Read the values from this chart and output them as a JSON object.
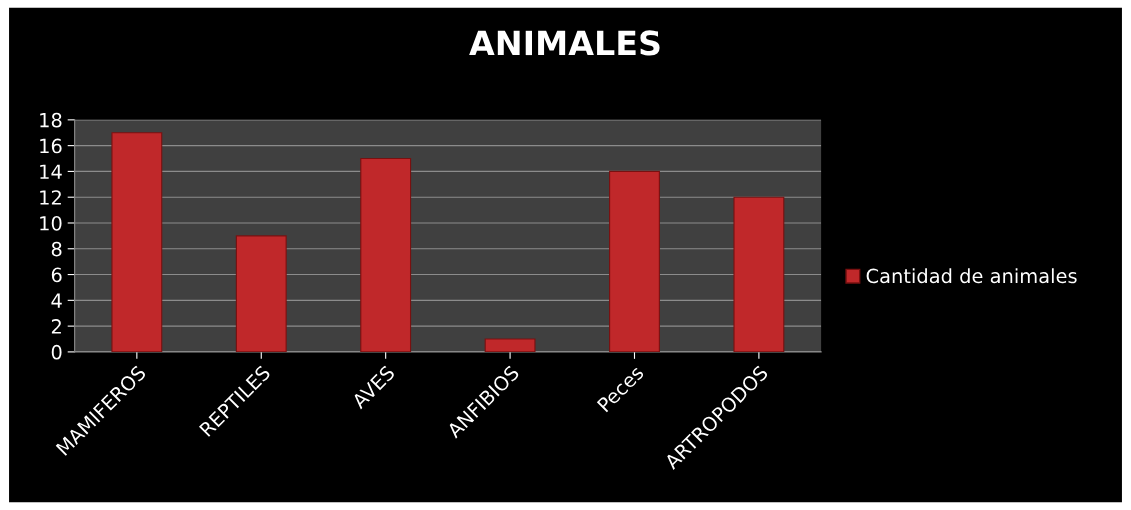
{
  "chart_data": {
    "type": "bar",
    "title": "ANIMALES",
    "categories": [
      "MAMIFEROS",
      "REPTILES",
      "AVES",
      "ANFIBIOS",
      "Peces",
      "ARTROPODOS"
    ],
    "series": [
      {
        "name": "Cantidad de animales",
        "color": "#c0282a",
        "values": [
          17,
          9,
          15,
          1,
          14,
          12
        ]
      }
    ],
    "ylim": [
      0,
      18
    ],
    "yticks": [
      0,
      2,
      4,
      6,
      8,
      10,
      12,
      14,
      16,
      18
    ],
    "grid": "y",
    "legend": "right"
  }
}
